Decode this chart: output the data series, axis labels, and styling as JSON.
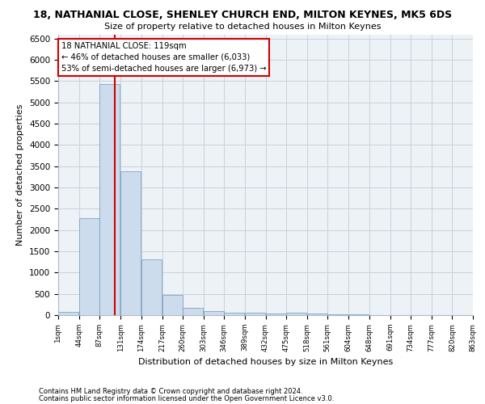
{
  "title_line1": "18, NATHANIAL CLOSE, SHENLEY CHURCH END, MILTON KEYNES, MK5 6DS",
  "title_line2": "Size of property relative to detached houses in Milton Keynes",
  "xlabel": "Distribution of detached houses by size in Milton Keynes",
  "ylabel": "Number of detached properties",
  "footnote1": "Contains HM Land Registry data © Crown copyright and database right 2024.",
  "footnote2": "Contains public sector information licensed under the Open Government Licence v3.0.",
  "bar_color": "#ccdcec",
  "bar_edge_color": "#7098b8",
  "grid_color": "#c8d0dc",
  "background_color": "#edf2f7",
  "annotation_box_color": "#cc0000",
  "vline_color": "#cc0000",
  "annotation_text_line1": "18 NATHANIAL CLOSE: 119sqm",
  "annotation_text_line2": "← 46% of detached houses are smaller (6,033)",
  "annotation_text_line3": "53% of semi-detached houses are larger (6,973) →",
  "property_size_sqm": 119,
  "bin_width": 43,
  "bin_starts": [
    1,
    44,
    87,
    131,
    174,
    217,
    260,
    303,
    346,
    389,
    432,
    475,
    518,
    561,
    604,
    648,
    691,
    734,
    777,
    820
  ],
  "bin_labels": [
    "1sqm",
    "44sqm",
    "87sqm",
    "131sqm",
    "174sqm",
    "217sqm",
    "260sqm",
    "303sqm",
    "346sqm",
    "389sqm",
    "432sqm",
    "475sqm",
    "518sqm",
    "561sqm",
    "604sqm",
    "648sqm",
    "691sqm",
    "734sqm",
    "777sqm",
    "820sqm",
    "863sqm"
  ],
  "bar_heights": [
    80,
    2270,
    5430,
    3380,
    1310,
    480,
    165,
    95,
    65,
    50,
    40,
    60,
    30,
    20,
    10,
    5,
    5,
    5,
    3,
    2
  ],
  "ylim": [
    0,
    6600
  ],
  "yticks": [
    0,
    500,
    1000,
    1500,
    2000,
    2500,
    3000,
    3500,
    4000,
    4500,
    5000,
    5500,
    6000,
    6500
  ]
}
